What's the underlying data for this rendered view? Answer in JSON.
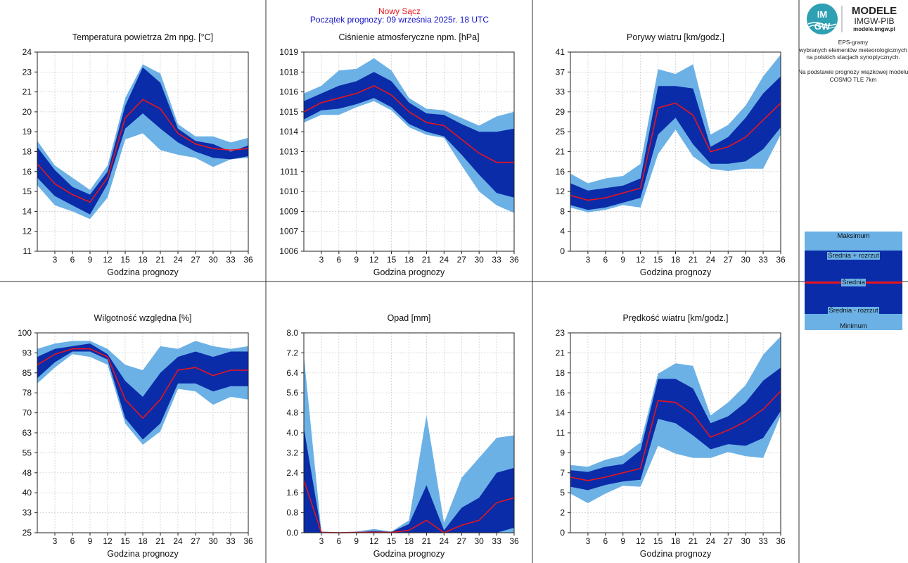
{
  "header": {
    "location": "Nowy Sącz",
    "forecast_start": "Początek prognozy: 09 września 2025r. 18 UTC"
  },
  "logo": {
    "badge_top": "IM",
    "badge_bottom": "GW",
    "title": "MODELE",
    "subtitle": "IMGW-PIB",
    "url": "modele.imgw.pl"
  },
  "description": {
    "lines": [
      "EPS-gramy",
      "wybranych elementów meteorologicznych",
      "na polskich stacjach  synoptycznych.",
      "",
      "Na podstawie prognozy wiązkowej modelu",
      "COSMO TLE 7km"
    ]
  },
  "legend": {
    "max": "Maksimum",
    "mean_plus": "Średnia + rozrzut",
    "mean": "Średnia",
    "mean_minus": "Średnia - rozrzut",
    "min": "Minimum"
  },
  "colors": {
    "outer_band": "#6cb1e6",
    "inner_band": "#0a2ca8",
    "mean_line": "#e8141c",
    "grid": "#c8c8c8",
    "location_text": "#e8141c",
    "start_text": "#1414c8"
  },
  "chart_data": [
    {
      "id": "temperature",
      "type": "area",
      "title": "Temperatura powietrza 2m npg. [°C]",
      "xlabel": "Godzina prognozy",
      "x": [
        0,
        3,
        6,
        9,
        12,
        15,
        18,
        21,
        24,
        27,
        30,
        33,
        36
      ],
      "x_ticks": [
        3,
        6,
        9,
        12,
        15,
        18,
        21,
        24,
        27,
        30,
        33,
        36
      ],
      "ylim": [
        11,
        24
      ],
      "y_ticks": [
        "11",
        "12",
        "14",
        "15",
        "16",
        "18",
        "19",
        "20",
        "21",
        "23",
        "24"
      ],
      "grid": true,
      "series": {
        "max": [
          18.2,
          16.6,
          15.8,
          15.0,
          16.6,
          21.0,
          23.2,
          22.6,
          19.3,
          18.5,
          18.5,
          18.1,
          18.4
        ],
        "mean_plus": [
          17.8,
          16.3,
          15.2,
          14.7,
          16.2,
          20.5,
          23.0,
          22.0,
          19.0,
          18.2,
          18.0,
          17.5,
          17.9
        ],
        "mean": [
          16.7,
          15.4,
          14.7,
          14.2,
          15.8,
          19.7,
          20.9,
          20.3,
          18.7,
          18.0,
          17.7,
          17.6,
          17.7
        ],
        "mean_minus": [
          15.8,
          14.6,
          14.0,
          13.4,
          15.4,
          19.0,
          20.0,
          19.0,
          18.1,
          17.5,
          17.1,
          17.0,
          17.2
        ],
        "min": [
          15.3,
          14.0,
          13.6,
          13.1,
          14.5,
          18.3,
          18.7,
          17.6,
          17.3,
          17.1,
          16.5,
          17.0,
          17.1
        ]
      }
    },
    {
      "id": "pressure",
      "type": "area",
      "title": "Ciśnienie atmosferyczne npm. [hPa]",
      "xlabel": "Godzina prognozy",
      "x": [
        0,
        3,
        6,
        9,
        12,
        15,
        18,
        21,
        24,
        27,
        30,
        33,
        36
      ],
      "x_ticks": [
        3,
        6,
        9,
        12,
        15,
        18,
        21,
        24,
        27,
        30,
        33,
        36
      ],
      "ylim": [
        1006,
        1019
      ],
      "y_ticks": [
        "1006",
        "1007",
        "1009",
        "1010",
        "1011",
        "1013",
        "1014",
        "1015",
        "1016",
        "1018",
        "1019"
      ],
      "grid": true,
      "series": {
        "max": [
          1016.3,
          1016.8,
          1017.8,
          1017.9,
          1018.6,
          1017.8,
          1016.0,
          1015.3,
          1015.2,
          1014.7,
          1014.2,
          1014.8,
          1015.1
        ],
        "mean_plus": [
          1015.8,
          1016.3,
          1016.8,
          1017.1,
          1017.7,
          1017.1,
          1015.7,
          1015.0,
          1014.9,
          1014.3,
          1013.8,
          1013.8,
          1014.0
        ],
        "mean": [
          1015.1,
          1015.7,
          1016.0,
          1016.3,
          1016.8,
          1016.2,
          1015.1,
          1014.4,
          1014.2,
          1013.3,
          1012.4,
          1011.8,
          1011.8
        ],
        "mean_minus": [
          1014.6,
          1015.2,
          1015.3,
          1015.6,
          1016.0,
          1015.4,
          1014.3,
          1013.8,
          1013.5,
          1012.3,
          1011.0,
          1009.8,
          1009.5
        ],
        "min": [
          1014.4,
          1014.9,
          1014.9,
          1015.4,
          1015.8,
          1015.2,
          1014.1,
          1013.6,
          1013.4,
          1011.6,
          1009.9,
          1009.0,
          1008.5
        ]
      }
    },
    {
      "id": "gusts",
      "type": "area",
      "title": "Porywy wiatru [km/godz.]",
      "xlabel": "Godzina prognozy",
      "x": [
        0,
        3,
        6,
        9,
        12,
        15,
        18,
        21,
        24,
        27,
        30,
        33,
        36
      ],
      "x_ticks": [
        3,
        6,
        9,
        12,
        15,
        18,
        21,
        24,
        27,
        30,
        33,
        36
      ],
      "ylim": [
        0,
        41
      ],
      "y_ticks": [
        "0",
        "4",
        "8",
        "12",
        "16",
        "21",
        "25",
        "29",
        "33",
        "37",
        "41"
      ],
      "grid": true,
      "series": {
        "max": [
          16.0,
          14.0,
          15.0,
          15.5,
          18.0,
          37.5,
          36.5,
          38.5,
          24.0,
          26.0,
          30.0,
          36.0,
          40.5
        ],
        "mean_plus": [
          14.0,
          12.5,
          13.0,
          13.5,
          15.0,
          34.0,
          34.0,
          33.5,
          21.5,
          23.5,
          27.5,
          32.5,
          36.0
        ],
        "mean": [
          11.5,
          10.5,
          11.0,
          12.0,
          13.0,
          29.5,
          30.5,
          28.0,
          20.5,
          21.5,
          23.5,
          27.0,
          30.5
        ],
        "mean_minus": [
          9.5,
          8.5,
          9.0,
          10.0,
          11.0,
          24.0,
          27.5,
          22.0,
          18.0,
          18.0,
          18.5,
          21.0,
          25.5
        ],
        "min": [
          9.0,
          8.0,
          8.5,
          9.5,
          9.0,
          20.0,
          25.0,
          19.5,
          17.0,
          16.5,
          17.0,
          17.0,
          24.0
        ]
      }
    },
    {
      "id": "humidity",
      "type": "area",
      "title": "Wilgotność względna [%]",
      "xlabel": "Godzina prognozy",
      "x": [
        0,
        3,
        6,
        9,
        12,
        15,
        18,
        21,
        24,
        27,
        30,
        33,
        36
      ],
      "x_ticks": [
        3,
        6,
        9,
        12,
        15,
        18,
        21,
        24,
        27,
        30,
        33,
        36
      ],
      "ylim": [
        25,
        100
      ],
      "y_ticks": [
        "25",
        "33",
        "40",
        "48",
        "55",
        "63",
        "70",
        "78",
        "85",
        "93",
        "100"
      ],
      "grid": true,
      "series": {
        "max": [
          94,
          96,
          97,
          97,
          94,
          88,
          86,
          95,
          94,
          97,
          95,
          94,
          95
        ],
        "mean_plus": [
          91,
          94,
          95,
          96,
          92,
          82,
          76,
          85,
          91,
          93,
          91,
          93,
          93
        ],
        "mean": [
          88,
          92,
          94,
          94,
          91,
          75,
          68,
          75,
          86,
          87,
          84,
          86,
          86
        ],
        "mean_minus": [
          83,
          89,
          93,
          93,
          90,
          68,
          60,
          66,
          81,
          81,
          78,
          80,
          80
        ],
        "min": [
          81,
          87,
          92,
          91,
          88,
          66,
          58,
          63,
          79,
          78,
          73,
          76,
          75
        ]
      }
    },
    {
      "id": "precipitation",
      "type": "area",
      "title": "Opad [mm]",
      "xlabel": "Godzina prognozy",
      "x": [
        0,
        3,
        6,
        9,
        12,
        15,
        18,
        21,
        24,
        27,
        30,
        33,
        36
      ],
      "x_ticks": [
        3,
        6,
        9,
        12,
        15,
        18,
        21,
        24,
        27,
        30,
        33,
        36
      ],
      "ylim": [
        0,
        8
      ],
      "y_ticks": [
        "0.0",
        "0.8",
        "1.6",
        "2.4",
        "3.2",
        "4.0",
        "4.8",
        "5.6",
        "6.4",
        "7.2",
        "8.0"
      ],
      "grid": true,
      "series": {
        "max": [
          7.1,
          0.05,
          0.02,
          0.05,
          0.15,
          0.05,
          0.5,
          4.7,
          0.4,
          2.2,
          3.0,
          3.8,
          3.9
        ],
        "mean_plus": [
          4.2,
          0.03,
          0.01,
          0.02,
          0.07,
          0.03,
          0.35,
          1.9,
          0.1,
          1.0,
          1.4,
          2.4,
          2.6
        ],
        "mean": [
          2.1,
          0.01,
          0.0,
          0.01,
          0.02,
          0.01,
          0.1,
          0.5,
          0.0,
          0.3,
          0.5,
          1.2,
          1.4
        ],
        "mean_minus": [
          0.0,
          0.0,
          0.0,
          0.0,
          0.0,
          0.0,
          0.0,
          0.0,
          0.0,
          0.0,
          0.0,
          0.0,
          0.2
        ],
        "min": [
          0.0,
          0.0,
          0.0,
          0.0,
          0.0,
          0.0,
          0.0,
          0.0,
          0.0,
          0.0,
          0.0,
          0.0,
          0.0
        ]
      }
    },
    {
      "id": "wind_speed",
      "type": "area",
      "title": "Prędkość wiatru [km/godz.]",
      "xlabel": "Godzina prognozy",
      "x": [
        0,
        3,
        6,
        9,
        12,
        15,
        18,
        21,
        24,
        27,
        30,
        33,
        36
      ],
      "x_ticks": [
        3,
        6,
        9,
        12,
        15,
        18,
        21,
        24,
        27,
        30,
        33,
        36
      ],
      "ylim": [
        0,
        23
      ],
      "y_ticks": [
        "0",
        "2",
        "5",
        "7",
        "9",
        "11",
        "14",
        "16",
        "18",
        "21",
        "23"
      ],
      "grid": true,
      "series": {
        "max": [
          7.8,
          7.6,
          8.4,
          8.9,
          10.4,
          18.3,
          19.5,
          19.2,
          13.5,
          15.0,
          17.0,
          20.5,
          22.6
        ],
        "mean_plus": [
          7.2,
          7.0,
          7.6,
          7.9,
          9.5,
          17.7,
          17.7,
          16.6,
          12.6,
          13.4,
          15.0,
          17.5,
          19.0
        ],
        "mean": [
          6.4,
          6.0,
          6.4,
          6.9,
          7.4,
          15.2,
          15.0,
          13.6,
          11.0,
          11.8,
          12.8,
          14.2,
          16.3
        ],
        "mean_minus": [
          5.3,
          4.9,
          5.5,
          5.9,
          6.1,
          13.1,
          12.6,
          11.2,
          9.6,
          10.2,
          10.0,
          10.9,
          14.0
        ],
        "min": [
          4.5,
          3.4,
          4.5,
          5.4,
          5.3,
          10.0,
          9.1,
          8.6,
          8.6,
          9.3,
          8.8,
          8.6,
          13.5
        ]
      }
    }
  ]
}
